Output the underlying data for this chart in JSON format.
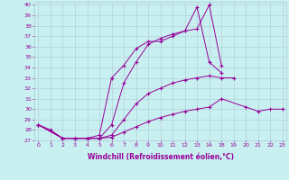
{
  "xlabel": "Windchill (Refroidissement éolien,°C)",
  "bg_color": "#c8f0f0",
  "line_color": "#990099",
  "grid_color": "#b0c8d8",
  "xtick_labels": [
    "0",
    "1",
    "2",
    "3",
    "4",
    "5",
    "6",
    "7",
    "8",
    "9",
    "10",
    "11",
    "12",
    "13",
    "14",
    "18",
    "19",
    "20",
    "21",
    "22",
    "23"
  ],
  "xtick_pos": [
    0,
    1,
    2,
    3,
    4,
    5,
    6,
    7,
    8,
    9,
    10,
    11,
    12,
    13,
    14,
    15,
    16,
    17,
    18,
    19,
    20
  ],
  "yticks": [
    27,
    28,
    29,
    30,
    31,
    32,
    33,
    34,
    35,
    36,
    37,
    38,
    39,
    40
  ],
  "xlim": [
    -0.3,
    20.3
  ],
  "ylim": [
    27,
    40.3
  ],
  "series": [
    {
      "x": [
        0,
        1,
        2,
        3,
        4,
        5,
        6,
        7,
        8,
        9,
        10,
        11,
        12,
        13,
        14,
        15
      ],
      "y": [
        28.5,
        28.0,
        27.2,
        27.2,
        27.2,
        27.5,
        33.0,
        34.2,
        35.8,
        36.5,
        36.5,
        37.0,
        37.5,
        39.8,
        34.5,
        33.5
      ]
    },
    {
      "x": [
        0,
        2,
        3,
        4,
        5,
        6,
        7,
        8,
        9,
        10,
        11,
        12,
        13,
        14,
        15,
        16,
        17,
        18,
        19,
        20
      ],
      "y": [
        28.5,
        27.2,
        27.2,
        27.2,
        27.2,
        28.5,
        32.5,
        34.5,
        36.2,
        36.8,
        37.2,
        37.5,
        37.7,
        40.0,
        34.2,
        null,
        null,
        null,
        null,
        null
      ]
    },
    {
      "x": [
        0,
        2,
        3,
        4,
        5,
        6,
        7,
        8,
        9,
        10,
        11,
        12,
        13,
        14,
        15,
        16
      ],
      "y": [
        28.5,
        27.2,
        27.2,
        27.2,
        27.2,
        27.5,
        29.0,
        30.5,
        31.5,
        32.0,
        32.5,
        32.8,
        33.0,
        33.2,
        33.0,
        33.0
      ]
    },
    {
      "x": [
        0,
        2,
        3,
        4,
        5,
        6,
        7,
        8,
        9,
        10,
        11,
        12,
        13,
        14,
        15,
        17,
        18,
        19,
        20
      ],
      "y": [
        28.5,
        27.2,
        27.2,
        27.2,
        27.2,
        27.3,
        27.8,
        28.3,
        28.8,
        29.2,
        29.5,
        29.8,
        30.0,
        30.2,
        31.0,
        30.2,
        29.8,
        30.0,
        30.0
      ]
    }
  ]
}
